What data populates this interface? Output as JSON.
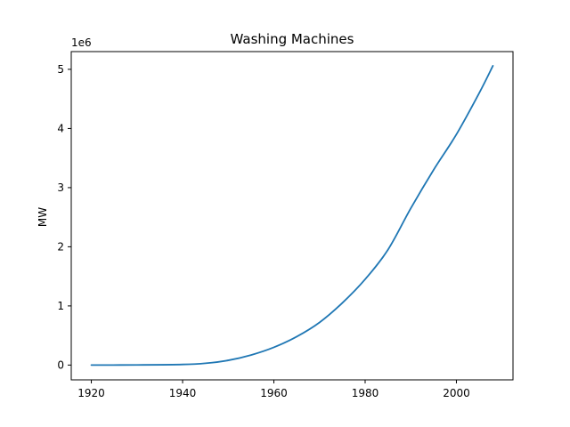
{
  "chart_data": {
    "type": "line",
    "title": "Washing Machines",
    "xlabel": "",
    "ylabel": "MW",
    "y_offset_label": "1e6",
    "xlim": [
      1915.6,
      2012.4
    ],
    "ylim": [
      -250000,
      5300000
    ],
    "x_ticks": [
      1920,
      1940,
      1960,
      1980,
      2000
    ],
    "y_ticks": [
      0,
      1,
      2,
      3,
      4,
      5
    ],
    "y_tick_scale": 1000000,
    "grid": false,
    "series": [
      {
        "color": "#1f77b4",
        "x": [
          1920,
          1930,
          1940,
          1945,
          1950,
          1955,
          1960,
          1965,
          1970,
          1975,
          1980,
          1985,
          1990,
          1995,
          2000,
          2005,
          2008
        ],
        "y": [
          0,
          2000,
          10000,
          30000,
          80000,
          170000,
          300000,
          480000,
          720000,
          1050000,
          1450000,
          1950000,
          2650000,
          3300000,
          3900000,
          4600000,
          5060000
        ]
      }
    ]
  }
}
